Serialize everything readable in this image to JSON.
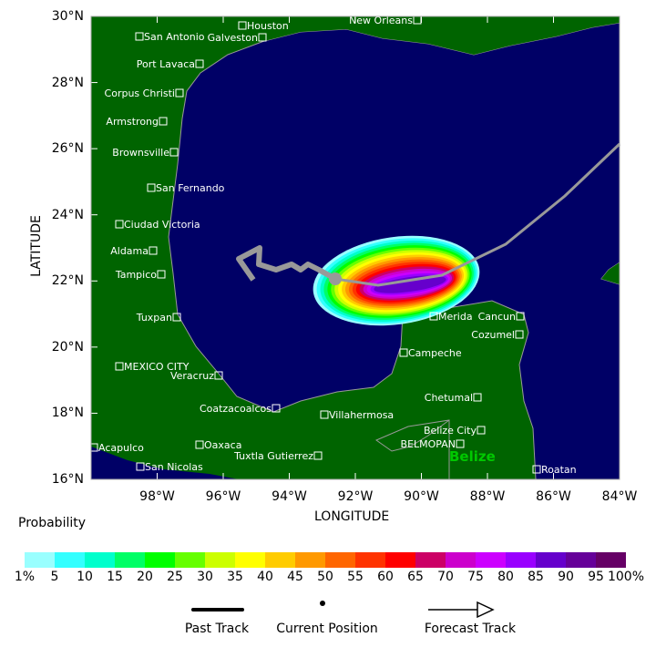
{
  "axes": {
    "xlabel": "LONGITUDE",
    "ylabel": "LATITUDE",
    "x_ticks": [
      "98°W",
      "96°W",
      "94°W",
      "92°W",
      "90°W",
      "88°W",
      "86°W",
      "84°W"
    ],
    "y_ticks": [
      "16°N",
      "18°N",
      "20°N",
      "22°N",
      "24°N",
      "26°N",
      "28°N",
      "30°N"
    ],
    "lon_range": [
      -100,
      -84
    ],
    "lat_range": [
      16,
      30
    ]
  },
  "colors": {
    "land": "#006400",
    "water": "#000066",
    "track": "#999999",
    "label": "#ffffff",
    "country_label": "#00c800"
  },
  "cities": [
    "San Antonio",
    "Houston",
    "Galveston",
    "New Orleans",
    "Port Lavaca",
    "Corpus Christi",
    "Armstrong",
    "Brownsville",
    "San Fernando",
    "Ciudad Victoria",
    "Aldama",
    "Tampico",
    "Tuxpan",
    "MEXICO CITY",
    "Veracruz",
    "Coatzacoalcos",
    "Villahermosa",
    "Oaxaca",
    "Acapulco",
    "San Nicolas",
    "Tuxtla Gutierrez",
    "Merida",
    "Cancun",
    "Cozumel",
    "Campeche",
    "Chetumal",
    "Belize City",
    "BELMOPAN",
    "Roatan"
  ],
  "country_label": "Belize",
  "colorbar": {
    "title": "Probability",
    "labels": [
      "1%",
      "5",
      "10",
      "15",
      "20",
      "25",
      "30",
      "35",
      "40",
      "45",
      "50",
      "55",
      "60",
      "65",
      "70",
      "75",
      "80",
      "85",
      "90",
      "95",
      "100%"
    ],
    "colors": [
      "#99FFFF",
      "#33FFFF",
      "#00FFCC",
      "#00FF66",
      "#00FF00",
      "#66FF00",
      "#CCFF00",
      "#FFFF00",
      "#FFCC00",
      "#FF9900",
      "#FF6600",
      "#FF3300",
      "#FF0000",
      "#CC0066",
      "#CC00CC",
      "#CC00FF",
      "#9900FF",
      "#6600CC",
      "#660099",
      "#660066"
    ]
  },
  "legend": {
    "past_track": "Past Track",
    "current_position": "Current Position",
    "forecast_track": "Forecast Track"
  }
}
